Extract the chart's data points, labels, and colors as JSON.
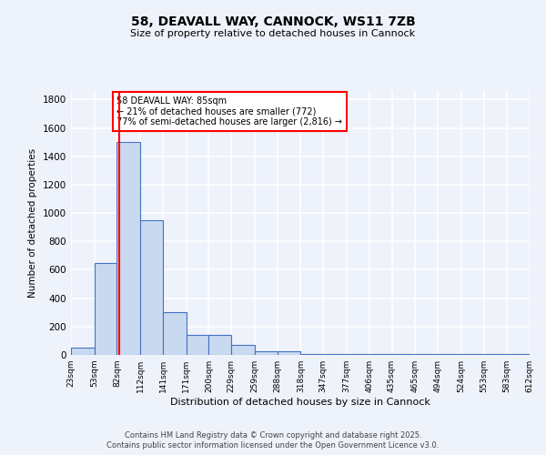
{
  "title": "58, DEAVALL WAY, CANNOCK, WS11 7ZB",
  "subtitle": "Size of property relative to detached houses in Cannock",
  "xlabel": "Distribution of detached houses by size in Cannock",
  "ylabel": "Number of detached properties",
  "bin_edges": [
    23,
    53,
    82,
    112,
    141,
    171,
    200,
    229,
    259,
    288,
    318,
    347,
    377,
    406,
    435,
    465,
    494,
    524,
    553,
    583,
    612
  ],
  "bar_heights": [
    50,
    650,
    1500,
    950,
    300,
    140,
    140,
    70,
    25,
    25,
    8,
    5,
    5,
    5,
    5,
    5,
    5,
    5,
    5,
    5
  ],
  "bar_color": "#c9d9f0",
  "bar_edge_color": "#4472c4",
  "red_line_x": 85,
  "ylim": [
    0,
    1860
  ],
  "yticks": [
    0,
    200,
    400,
    600,
    800,
    1000,
    1200,
    1400,
    1600,
    1800
  ],
  "annotation_text": "58 DEAVALL WAY: 85sqm\n← 21% of detached houses are smaller (772)\n77% of semi-detached houses are larger (2,816) →",
  "background_color": "#eef2fb",
  "grid_color": "#ffffff",
  "footer_line1": "Contains HM Land Registry data © Crown copyright and database right 2025.",
  "footer_line2": "Contains public sector information licensed under the Open Government Licence v3.0."
}
